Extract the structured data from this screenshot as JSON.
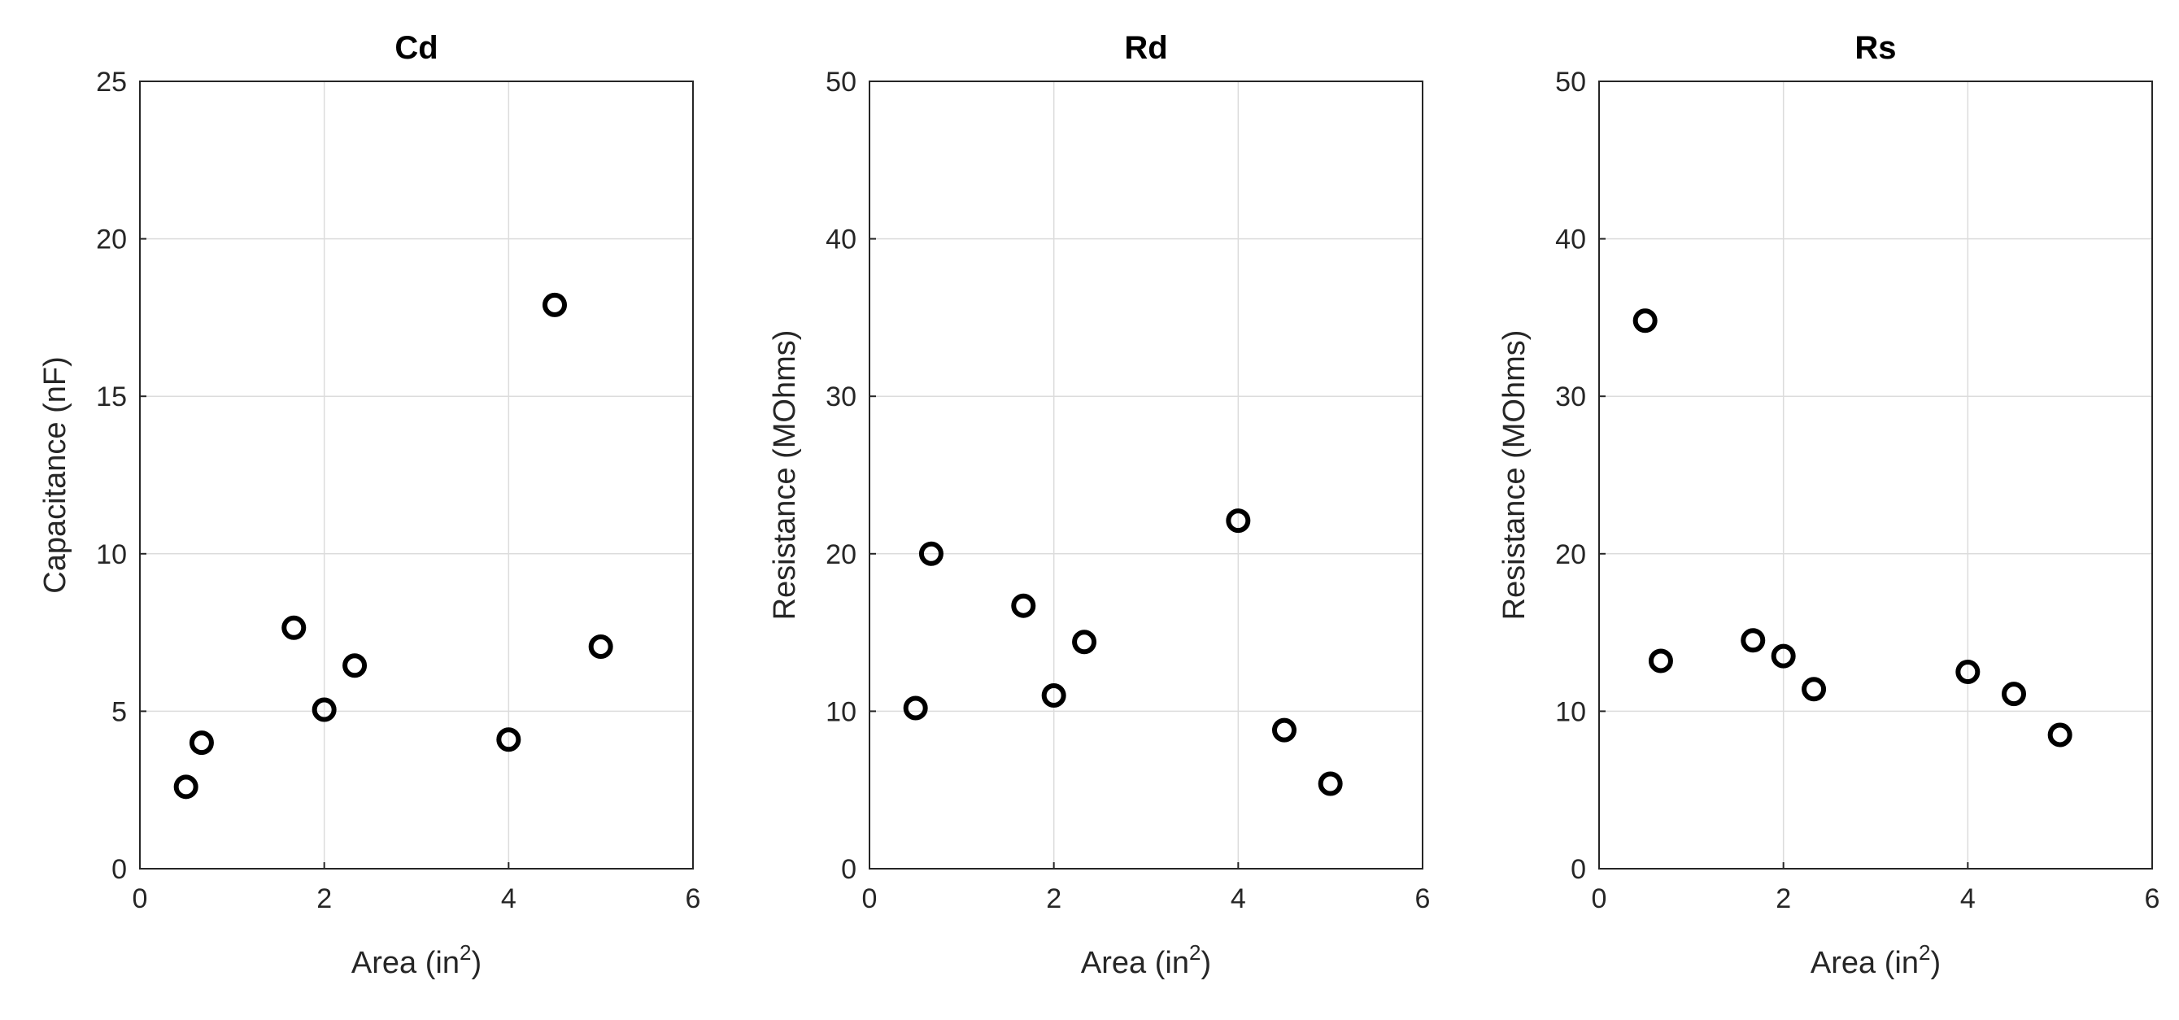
{
  "chart_data": [
    {
      "type": "scatter",
      "title": "Cd",
      "xlabel": "Area (in",
      "xlabel_sup": "2",
      "xlabel_end": ")",
      "ylabel": "Capacitance (nF)",
      "xlim": [
        0,
        6
      ],
      "ylim": [
        0,
        25
      ],
      "xticks": [
        0,
        2,
        4,
        6
      ],
      "yticks": [
        0,
        5,
        10,
        15,
        20,
        25
      ],
      "grid": true,
      "x": [
        0.5,
        0.67,
        1.67,
        2.0,
        2.33,
        4.0,
        4.5,
        5.0
      ],
      "y": [
        2.6,
        4.0,
        7.65,
        5.05,
        6.45,
        4.1,
        17.9,
        7.05
      ]
    },
    {
      "type": "scatter",
      "title": "Rd",
      "xlabel": "Area (in",
      "xlabel_sup": "2",
      "xlabel_end": ")",
      "ylabel": "Resistance (MOhms)",
      "xlim": [
        0,
        6
      ],
      "ylim": [
        0,
        50
      ],
      "xticks": [
        0,
        2,
        4,
        6
      ],
      "yticks": [
        0,
        10,
        20,
        30,
        40,
        50
      ],
      "grid": true,
      "x": [
        0.5,
        0.67,
        1.67,
        2.0,
        2.33,
        4.0,
        4.5,
        5.0
      ],
      "y": [
        10.2,
        20.0,
        16.7,
        11.0,
        14.4,
        22.1,
        8.8,
        5.4
      ]
    },
    {
      "type": "scatter",
      "title": "Rs",
      "xlabel": "Area (in",
      "xlabel_sup": "2",
      "xlabel_end": ")",
      "ylabel": "Resistance (MOhms)",
      "xlim": [
        0,
        6
      ],
      "ylim": [
        0,
        50
      ],
      "xticks": [
        0,
        2,
        4,
        6
      ],
      "yticks": [
        0,
        10,
        20,
        30,
        40,
        50
      ],
      "grid": true,
      "x": [
        0.5,
        0.67,
        1.67,
        2.0,
        2.33,
        4.0,
        4.5,
        5.0
      ],
      "y": [
        34.8,
        13.2,
        14.5,
        13.5,
        11.4,
        12.5,
        11.1,
        8.5
      ]
    }
  ]
}
